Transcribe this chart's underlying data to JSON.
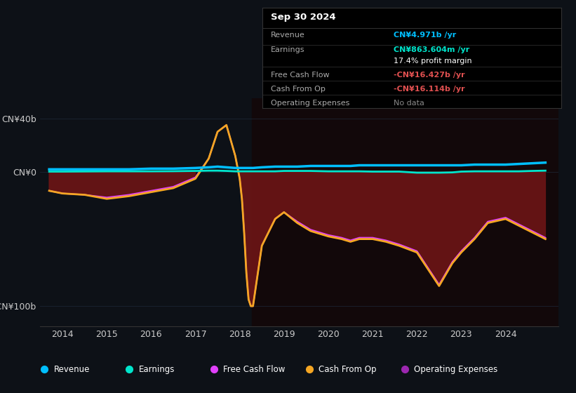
{
  "bg_color": "#0d1117",
  "yticks": [
    -100,
    0,
    40
  ],
  "ytick_labels": [
    "-CN¥100b",
    "CN¥0",
    "CN¥40b"
  ],
  "xticks": [
    2014,
    2015,
    2016,
    2017,
    2018,
    2019,
    2020,
    2021,
    2022,
    2023,
    2024
  ],
  "grid_color": "#1e2a3a",
  "legend_items": [
    "Revenue",
    "Earnings",
    "Free Cash Flow",
    "Cash From Op",
    "Operating Expenses"
  ],
  "legend_colors": [
    "#00bfff",
    "#00e5cc",
    "#e040fb",
    "#f5a623",
    "#9c27b0"
  ],
  "revenue_color": "#00bfff",
  "earnings_color": "#00e5cc",
  "free_cash_flow_color": "#e040fb",
  "cash_from_op_color": "#f5a623",
  "fill_color": "#6b1515",
  "shade_color": "#1a0505",
  "box_bg": "#000000",
  "box_border": "#333333",
  "date_label": "Sep 30 2024",
  "info_rows": [
    {
      "label": "Revenue",
      "value": "CN¥4.971b /yr",
      "value_color": "#00bfff"
    },
    {
      "label": "Earnings",
      "value": "CN¥863.604m /yr",
      "value_color": "#00e5cc"
    },
    {
      "label": "",
      "value": "17.4% profit margin",
      "value_color": "#ffffff"
    },
    {
      "label": "Free Cash Flow",
      "value": "-CN¥16.427b /yr",
      "value_color": "#e05050"
    },
    {
      "label": "Cash From Op",
      "value": "-CN¥16.114b /yr",
      "value_color": "#e05050"
    },
    {
      "label": "Operating Expenses",
      "value": "No data",
      "value_color": "#888888"
    }
  ]
}
